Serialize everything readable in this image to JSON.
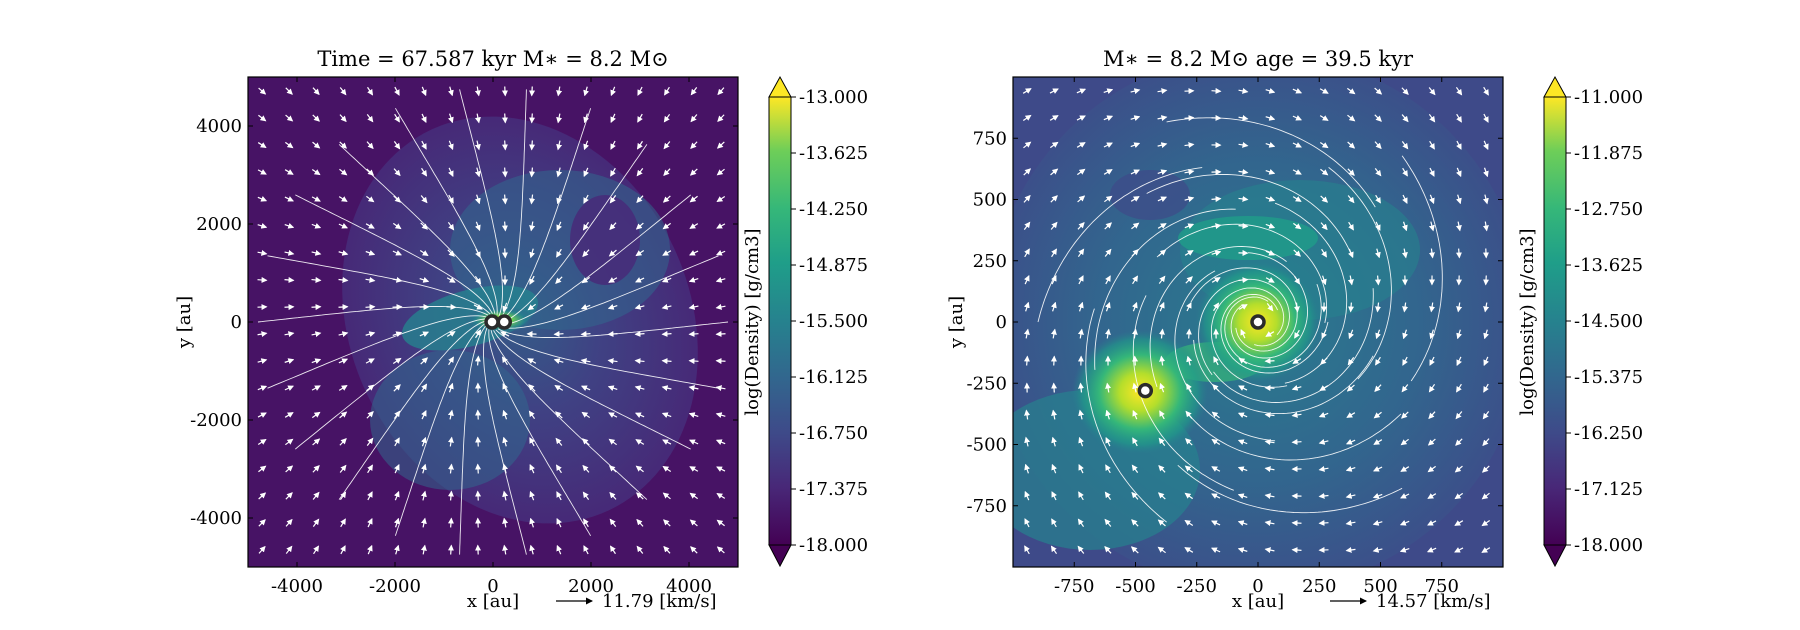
{
  "chart_data": [
    {
      "type": "heatmap",
      "title": "Time = 67.587 kyr    M$_*$ = 8.2 M$_\\odot$",
      "title_display": "Time = 67.587 kyr    M∗ = 8.2 M⊙",
      "xlabel": "x [au]",
      "ylabel": "y [au]",
      "xlim": [
        -5000,
        5000
      ],
      "ylim": [
        -5000,
        5000
      ],
      "xticks": [
        -4000,
        -2000,
        0,
        2000,
        4000
      ],
      "yticks": [
        -4000,
        -2000,
        0,
        2000,
        4000
      ],
      "colorbar": {
        "label": "log(Density) [g/cm3]",
        "range": [
          -18.0,
          -13.0
        ],
        "ticks": [
          "-13.000",
          "-13.625",
          "-14.250",
          "-14.875",
          "-15.500",
          "-16.125",
          "-16.750",
          "-17.375",
          "-18.000"
        ]
      },
      "velocity_key": "11.79 [km/s]",
      "stars": [
        {
          "x": -20,
          "y": 0
        },
        {
          "x": 230,
          "y": 0
        }
      ]
    },
    {
      "type": "heatmap",
      "title_display": "M∗ = 8.2 M⊙          age = 39.5 kyr",
      "xlabel": "x [au]",
      "ylabel": "y [au]",
      "xlim": [
        -1000,
        1000
      ],
      "ylim": [
        -1000,
        1000
      ],
      "xticks": [
        -750,
        -500,
        -250,
        0,
        250,
        500,
        750
      ],
      "yticks": [
        750,
        500,
        250,
        0,
        -250,
        -500,
        -750
      ],
      "colorbar": {
        "label": "log(Density) [g/cm3]",
        "range": [
          -18.0,
          -11.0
        ],
        "ticks": [
          "-11.000",
          "-11.875",
          "-12.750",
          "-13.625",
          "-14.500",
          "-15.375",
          "-16.250",
          "-17.125",
          "-18.000"
        ]
      },
      "velocity_key": "14.57 [km/s]",
      "stars": [
        {
          "x": 0,
          "y": 0
        },
        {
          "x": -460,
          "y": -280
        }
      ]
    }
  ]
}
